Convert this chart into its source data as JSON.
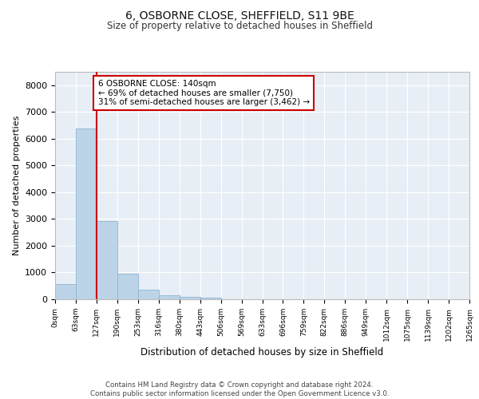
{
  "title_line1": "6, OSBORNE CLOSE, SHEFFIELD, S11 9BE",
  "title_line2": "Size of property relative to detached houses in Sheffield",
  "xlabel": "Distribution of detached houses by size in Sheffield",
  "ylabel": "Number of detached properties",
  "bar_color": "#bdd4e8",
  "bar_edge_color": "#8ab4d4",
  "background_color": "#e8eef5",
  "grid_color": "#ffffff",
  "bin_labels": [
    "0sqm",
    "63sqm",
    "127sqm",
    "190sqm",
    "253sqm",
    "316sqm",
    "380sqm",
    "443sqm",
    "506sqm",
    "569sqm",
    "633sqm",
    "696sqm",
    "759sqm",
    "822sqm",
    "886sqm",
    "949sqm",
    "1012sqm",
    "1075sqm",
    "1139sqm",
    "1202sqm",
    "1265sqm"
  ],
  "bar_heights": [
    580,
    6380,
    2920,
    960,
    360,
    160,
    90,
    60,
    0,
    0,
    0,
    0,
    0,
    0,
    0,
    0,
    0,
    0,
    0,
    0
  ],
  "ylim": [
    0,
    8500
  ],
  "yticks": [
    0,
    1000,
    2000,
    3000,
    4000,
    5000,
    6000,
    7000,
    8000
  ],
  "annotation_text": "6 OSBORNE CLOSE: 140sqm\n← 69% of detached houses are smaller (7,750)\n31% of semi-detached houses are larger (3,462) →",
  "annotation_box_color": "#ffffff",
  "annotation_box_edge": "#cc0000",
  "red_line_color": "#cc0000",
  "footer_text": "Contains HM Land Registry data © Crown copyright and database right 2024.\nContains public sector information licensed under the Open Government Licence v3.0.",
  "n_bins": 20,
  "bin_width": 63,
  "property_bin_index": 2
}
